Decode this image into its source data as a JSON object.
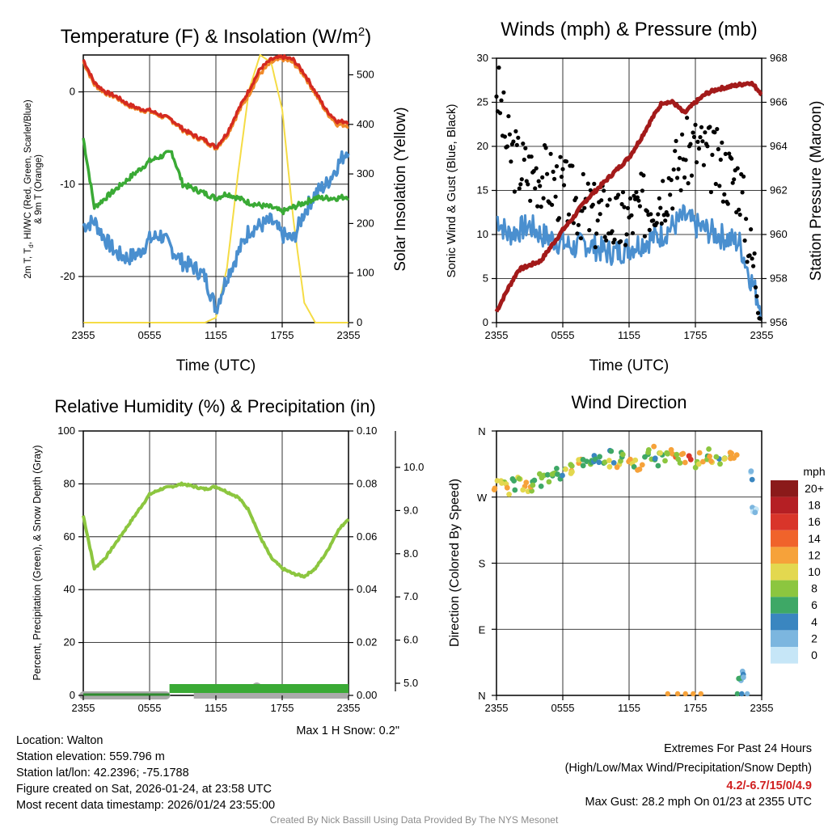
{
  "chart_data": [
    {
      "id": "temp",
      "type": "line",
      "title": "Temperature (F) & Insolation (W/m",
      "title_sup": "2",
      "title_end": ")",
      "xlabel": "Time (UTC)",
      "ylabel_line1": "2m T, T",
      "ylabel_sub": "d",
      "ylabel_line1b": ", HI/WC (Red, Green, Scarlet/Blue)",
      "ylabel_line2": "& 9m T (Orange)",
      "ylabel_right": "Solar Insolation (Yellow)",
      "xticks": [
        "2355",
        "0555",
        "1155",
        "1755",
        "2355"
      ],
      "yticks_left": [
        "0",
        "-10",
        "-20"
      ],
      "yticks_right": [
        "0",
        "100",
        "200",
        "300",
        "400",
        "500"
      ],
      "ylim_left": [
        -25,
        4
      ],
      "ylim_right": [
        0,
        540
      ],
      "x_hours": [
        0,
        1,
        2,
        3,
        4,
        5,
        6,
        7,
        8,
        9,
        10,
        11,
        12,
        13,
        14,
        15,
        16,
        17,
        18,
        19,
        20,
        21,
        22,
        23,
        24
      ],
      "series": [
        {
          "name": "2m T (Red)",
          "color": "#d42a20",
          "values": [
            3.5,
            1.0,
            0.0,
            -0.5,
            -1.3,
            -1.8,
            -2.0,
            -2.5,
            -3.0,
            -4.0,
            -4.7,
            -5.2,
            -6.0,
            -4.5,
            -2.0,
            0.2,
            2.5,
            3.5,
            3.8,
            3.5,
            2.0,
            0.0,
            -2.0,
            -3.2,
            -3.2
          ]
        },
        {
          "name": "9m T (Orange)",
          "color": "#f08a2a",
          "values": [
            3.3,
            0.8,
            -0.1,
            -0.6,
            -1.4,
            -1.9,
            -2.1,
            -2.6,
            -3.1,
            -4.1,
            -4.8,
            -5.3,
            -6.1,
            -4.7,
            -2.3,
            -0.2,
            2.0,
            3.2,
            3.6,
            3.2,
            1.8,
            -0.2,
            -2.2,
            -3.5,
            -3.6
          ]
        },
        {
          "name": "Td (Green)",
          "color": "#3aaa35",
          "values": [
            -5.0,
            -12.5,
            -11.5,
            -10.5,
            -9.5,
            -8.5,
            -7.5,
            -7.0,
            -6.5,
            -10.0,
            -10.5,
            -11.0,
            -11.5,
            -11.0,
            -11.5,
            -12.0,
            -12.3,
            -12.5,
            -13.0,
            -12.5,
            -12.0,
            -11.5,
            -11.5,
            -11.5,
            -11.3
          ]
        },
        {
          "name": "HI/WC (Blue)",
          "color": "#4a8fcf",
          "values": [
            -14.5,
            -14.0,
            -16.0,
            -17.5,
            -18.0,
            -17.5,
            -16.0,
            -15.5,
            -17.0,
            -18.5,
            -19.0,
            -20.0,
            -23.5,
            -20.0,
            -17.5,
            -15.0,
            -14.5,
            -14.0,
            -15.5,
            -16.0,
            -13.0,
            -11.0,
            -10.0,
            -8.0,
            -6.0
          ]
        },
        {
          "name": "Solar Insolation (Yellow)",
          "color": "#f5dc45",
          "axis": "right",
          "values": [
            0,
            0,
            0,
            0,
            0,
            0,
            0,
            0,
            0,
            0,
            0,
            0,
            10,
            110,
            300,
            470,
            540,
            525,
            430,
            210,
            40,
            0,
            0,
            0,
            0
          ]
        }
      ]
    },
    {
      "id": "winds",
      "type": "line",
      "title": "Winds (mph) & Pressure (mb)",
      "xlabel": "Time (UTC)",
      "ylabel_left": "Sonic Wind & Gust (Blue, Black)",
      "ylabel_right": "Station Pressure (Maroon)",
      "xticks": [
        "2355",
        "0555",
        "1155",
        "1755",
        "2355"
      ],
      "yticks_left": [
        "0",
        "5",
        "10",
        "15",
        "20",
        "25",
        "30"
      ],
      "yticks_right": [
        "956",
        "958",
        "960",
        "962",
        "964",
        "966",
        "968"
      ],
      "ylim_left": [
        0,
        30
      ],
      "ylim_right": [
        956,
        968
      ],
      "x_hours": [
        0,
        1,
        2,
        3,
        4,
        5,
        6,
        7,
        8,
        9,
        10,
        11,
        12,
        13,
        14,
        15,
        16,
        17,
        18,
        19,
        20,
        21,
        22,
        23,
        24
      ],
      "series": [
        {
          "name": "Sonic Wind (Blue)",
          "color": "#4a8fcf",
          "values": [
            12,
            10,
            10.5,
            11,
            10,
            9.5,
            9,
            8.5,
            9,
            8.5,
            8,
            8,
            8.5,
            9,
            9.5,
            10,
            11,
            12,
            11,
            10.5,
            10,
            9.5,
            9,
            5,
            1.5
          ]
        },
        {
          "name": "Gust (Black dots)",
          "color": "#000000",
          "values": [
            27,
            20,
            18,
            17,
            17,
            16,
            15,
            14,
            13,
            12,
            12.5,
            11,
            12,
            13,
            14,
            15,
            17,
            19,
            20,
            19,
            18,
            17,
            16,
            8,
            3
          ]
        },
        {
          "name": "Station Pressure (Maroon)",
          "color": "#a31a1a",
          "axis": "right",
          "values": [
            956.5,
            957.5,
            958.4,
            958.6,
            958.8,
            959.5,
            960.2,
            960.8,
            961.5,
            962.0,
            962.5,
            963.0,
            963.5,
            964.3,
            965.2,
            966.0,
            966.0,
            965.5,
            966.0,
            966.4,
            966.6,
            966.7,
            966.8,
            966.9,
            966.4
          ]
        }
      ]
    },
    {
      "id": "rh",
      "type": "line",
      "title": "Relative Humidity (%) & Precipitation (in)",
      "ylabel": "Percent, Precipitation (Green), & Snow Depth (Gray)",
      "xticks": [
        "2355",
        "0555",
        "1155",
        "1755",
        "2355"
      ],
      "yticks_left": [
        "0",
        "20",
        "40",
        "60",
        "80",
        "100"
      ],
      "yticks_mid": [
        "0.00",
        "0.02",
        "0.04",
        "0.06",
        "0.08",
        "0.10"
      ],
      "yticks_right": [
        "5.0",
        "6.0",
        "7.0",
        "8.0",
        "9.0",
        "10.0"
      ],
      "ylim_left": [
        0,
        100
      ],
      "x_hours": [
        0,
        1,
        2,
        3,
        4,
        5,
        6,
        7,
        8,
        9,
        10,
        11,
        12,
        13,
        14,
        15,
        16,
        17,
        18,
        19,
        20,
        21,
        22,
        23,
        24
      ],
      "series": [
        {
          "name": "Relative Humidity (Green)",
          "color": "#8cc63f",
          "values": [
            68,
            48,
            52,
            58,
            64,
            70,
            76,
            78,
            79,
            80,
            79,
            78,
            79,
            77,
            75,
            70,
            60,
            52,
            48,
            46,
            45,
            48,
            54,
            62,
            67
          ]
        },
        {
          "name": "Precipitation (Green bar)",
          "color": "#3aaa35",
          "values": [
            0,
            0,
            0,
            0,
            0,
            0,
            0,
            0.001,
            0.002,
            0.002,
            0.002,
            0.002,
            0.002,
            0.002,
            0.002,
            0.002,
            0.002,
            0.002,
            0.002,
            0.002,
            0.002,
            0.002,
            0.002,
            0.002,
            0.002
          ]
        },
        {
          "name": "Snow Depth (Gray)",
          "color": "#aaaaaa",
          "values": [
            0,
            0,
            0,
            0,
            0,
            0,
            0,
            0,
            0,
            0,
            0,
            0,
            0,
            0,
            0,
            0.3,
            0,
            0,
            0,
            0,
            0,
            0,
            0,
            0,
            0
          ]
        }
      ],
      "snow_note": "Max 1 H Snow: 0.2\""
    },
    {
      "id": "wdir",
      "type": "scatter",
      "title": "Wind Direction",
      "ylabel": "Direction (Colored By Speed)",
      "xticks": [
        "2355",
        "0555",
        "1155",
        "1755",
        "2355"
      ],
      "yticks": [
        "N",
        "E",
        "S",
        "W",
        "N"
      ],
      "ylim": [
        0,
        360
      ],
      "colorbar_title": "mph",
      "colorbar_labels": [
        "20+",
        "18",
        "16",
        "14",
        "12",
        "10",
        "8",
        "6",
        "4",
        "2",
        "0"
      ],
      "colorbar_colors": [
        "#8b1a1a",
        "#b51f24",
        "#d9352a",
        "#f0632b",
        "#f6a23a",
        "#e3d84f",
        "#8cc63f",
        "#3ea866",
        "#3a86c0",
        "#7cb6df",
        "#c6e6f7"
      ],
      "points_hours": [
        0,
        0.5,
        1,
        1.5,
        2,
        2.5,
        3,
        3.5,
        4,
        4.5,
        5,
        5.5,
        6,
        6.5,
        7,
        7.5,
        8,
        8.5,
        9,
        9.5,
        10,
        10.5,
        11,
        11.5,
        12,
        12.5,
        13,
        13.5,
        14,
        14.5,
        15,
        15.5,
        16,
        16.5,
        17,
        17.5,
        18,
        18.5,
        19,
        19.5,
        20,
        20.5,
        21,
        21.5,
        22,
        22.5,
        23,
        23.3,
        23.6
      ],
      "points_deg": [
        285,
        290,
        282,
        288,
        292,
        285,
        280,
        287,
        293,
        298,
        300,
        305,
        302,
        310,
        312,
        318,
        315,
        320,
        326,
        322,
        316,
        325,
        318,
        328,
        322,
        320,
        312,
        326,
        330,
        318,
        325,
        328,
        330,
        322,
        326,
        330,
        318,
        322,
        328,
        324,
        320,
        330,
        326,
        322,
        18,
        25,
        300,
        258,
        250
      ],
      "points_mph": [
        11,
        10,
        12,
        8,
        9,
        11,
        10,
        7,
        9,
        8,
        6,
        7,
        5,
        9,
        10,
        11,
        6,
        8,
        4,
        7,
        9,
        5,
        10,
        8,
        11,
        9,
        12,
        7,
        10,
        6,
        8,
        10,
        13,
        9,
        11,
        15,
        10,
        12,
        8,
        11,
        7,
        9,
        10,
        12,
        5,
        4,
        2,
        1,
        1
      ],
      "low_points_hours": [
        15.5,
        16.4,
        17.1,
        17.8,
        18.5,
        21.8,
        22.2,
        22.7
      ],
      "low_points_mph": [
        12,
        12,
        13,
        12,
        12,
        6,
        4,
        2
      ]
    }
  ],
  "info_left": [
    "Location: Walton",
    "Station elevation: 559.796 m",
    "Station lat/lon: 42.2396; -75.1788",
    "Figure created on Sat, 2026-01-24, at 23:58 UTC",
    "Most recent data timestamp: 2026/01/24 23:55:00"
  ],
  "info_right": {
    "title": "Extremes For Past 24 Hours",
    "subtitle": "(High/Low/Max Wind/Precipitation/Snow Depth)",
    "values": "4.2/-6.7/15/0/4.9",
    "gust": "Max Gust: 28.2 mph On 01/23 at 2355 UTC"
  },
  "credit": "Created By Nick Bassill Using Data Provided By The NYS Mesonet"
}
